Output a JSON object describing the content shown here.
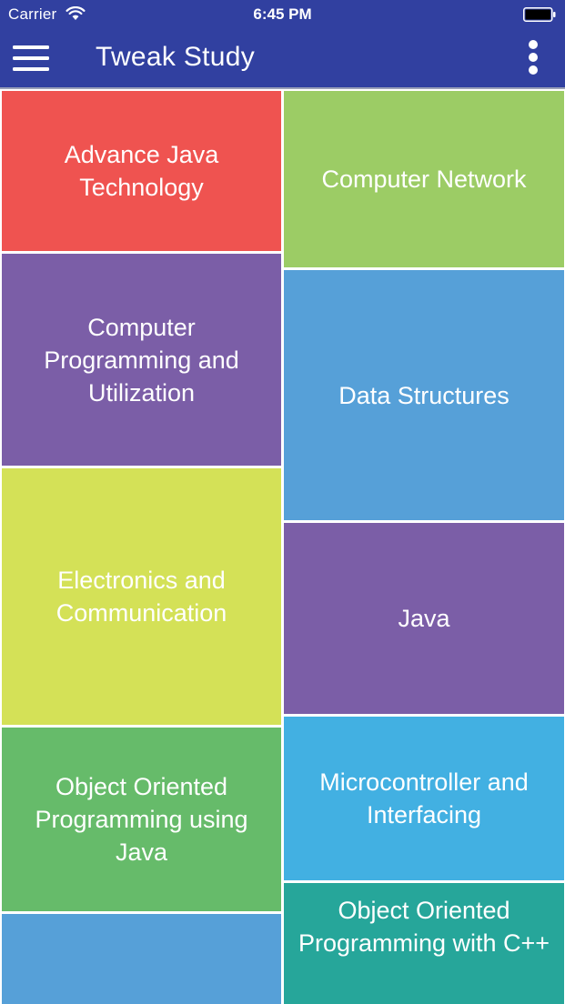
{
  "status_bar": {
    "carrier": "Carrier",
    "time": "6:45 PM",
    "wifi_icon": "wifi-icon",
    "battery_icon": "battery-icon"
  },
  "app_bar": {
    "title": "Tweak Study",
    "menu_icon": "hamburger-menu-icon",
    "more_icon": "more-vertical-icon",
    "background": "#3140a0"
  },
  "subjects": [
    {
      "label": "Advance Java Technology",
      "color": "#ef5350"
    },
    {
      "label": "Computer Network",
      "color": "#9ccc65"
    },
    {
      "label": "Computer Programming and Utilization",
      "color": "#7b5ea7"
    },
    {
      "label": "Data Structures",
      "color": "#56a0d8"
    },
    {
      "label": "Electronics and Communication",
      "color": "#d4e157"
    },
    {
      "label": "Java",
      "color": "#7b5ea7"
    },
    {
      "label": "Object Oriented Programming using Java",
      "color": "#66bb6a"
    },
    {
      "label": "Microcontroller and Interfacing",
      "color": "#42b0e2"
    },
    {
      "label": "",
      "color": "#56a0d8"
    },
    {
      "label": "Object Oriented Programming with C++",
      "color": "#26a69a"
    }
  ]
}
